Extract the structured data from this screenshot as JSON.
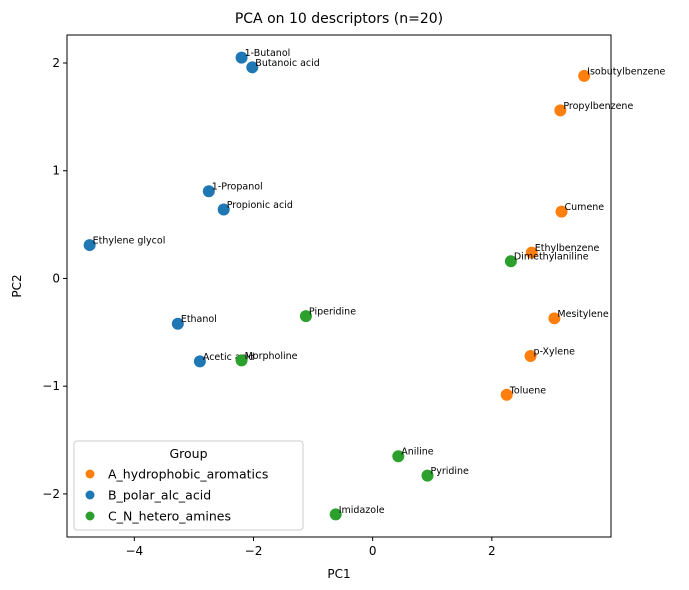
{
  "chart_data": {
    "type": "scatter",
    "title": "PCA on 10 descriptors (n=20)",
    "xlabel": "PC1",
    "ylabel": "PC2",
    "xlim": [
      -5.13,
      4.0
    ],
    "ylim": [
      -2.4,
      2.26
    ],
    "xticks": [
      -4,
      -2,
      0,
      2
    ],
    "yticks": [
      -2,
      -1,
      0,
      1,
      2
    ],
    "grid": false,
    "legend": {
      "title": "Group",
      "placement": "lower-left"
    },
    "series": [
      {
        "name": "A_hydrophobic_aromatics",
        "color": "#ff7f0e",
        "points": [
          {
            "label": "Isobutylbenzene",
            "x": 3.55,
            "y": 1.88
          },
          {
            "label": "Propylbenzene",
            "x": 3.15,
            "y": 1.56
          },
          {
            "label": "Cumene",
            "x": 3.17,
            "y": 0.62
          },
          {
            "label": "Ethylbenzene",
            "x": 2.67,
            "y": 0.24
          },
          {
            "label": "Mesitylene",
            "x": 3.05,
            "y": -0.37
          },
          {
            "label": "p-Xylene",
            "x": 2.65,
            "y": -0.72
          },
          {
            "label": "Toluene",
            "x": 2.25,
            "y": -1.08
          }
        ]
      },
      {
        "name": "B_polar_alc_acid",
        "color": "#1f77b4",
        "points": [
          {
            "label": "1-Butanol",
            "x": -2.2,
            "y": 2.05
          },
          {
            "label": "Butanoic acid",
            "x": -2.02,
            "y": 1.96
          },
          {
            "label": "1-Propanol",
            "x": -2.75,
            "y": 0.81
          },
          {
            "label": "Propionic acid",
            "x": -2.5,
            "y": 0.64
          },
          {
            "label": "Ethylene glycol",
            "x": -4.75,
            "y": 0.31
          },
          {
            "label": "Ethanol",
            "x": -3.27,
            "y": -0.42
          },
          {
            "label": "Acetic acid",
            "x": -2.9,
            "y": -0.77
          }
        ]
      },
      {
        "name": "C_N_hetero_amines",
        "color": "#2ca02c",
        "points": [
          {
            "label": "Dimethylaniline",
            "x": 2.32,
            "y": 0.16
          },
          {
            "label": "Piperidine",
            "x": -1.12,
            "y": -0.35
          },
          {
            "label": "Morpholine",
            "x": -2.2,
            "y": -0.76
          },
          {
            "label": "Aniline",
            "x": 0.43,
            "y": -1.65
          },
          {
            "label": "Pyridine",
            "x": 0.92,
            "y": -1.83
          },
          {
            "label": "Imidazole",
            "x": -0.62,
            "y": -2.19
          }
        ]
      }
    ]
  }
}
